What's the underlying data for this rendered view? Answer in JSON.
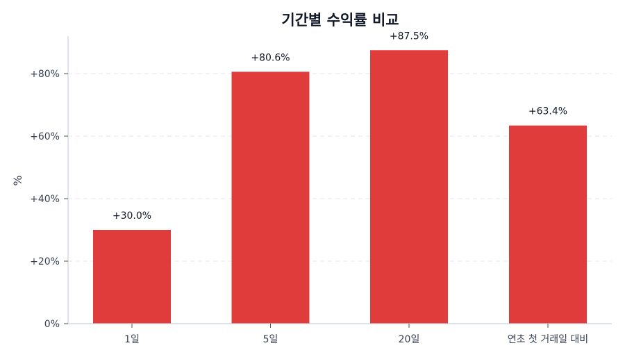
{
  "chart_data": {
    "type": "bar",
    "title": "기간별 수익률 비교",
    "xlabel": "",
    "ylabel": "%",
    "categories": [
      "1일",
      "5일",
      "20일",
      "연초 첫 거래일 대비"
    ],
    "values": [
      30.0,
      80.6,
      87.5,
      63.4
    ],
    "value_labels": [
      "+30.0%",
      "+80.6%",
      "+87.5%",
      "+63.4%"
    ],
    "ylim": [
      0,
      92
    ],
    "yticks": [
      0,
      20,
      40,
      60,
      80
    ],
    "ytick_labels": [
      "0%",
      "+20%",
      "+40%",
      "+60%",
      "+80%"
    ],
    "grid": {
      "y": true,
      "style": "dashed"
    },
    "legend": null,
    "colors": {
      "bar": "#e03c3c",
      "grid": "#e5e7eb",
      "axis": "#cbd2dc"
    }
  }
}
